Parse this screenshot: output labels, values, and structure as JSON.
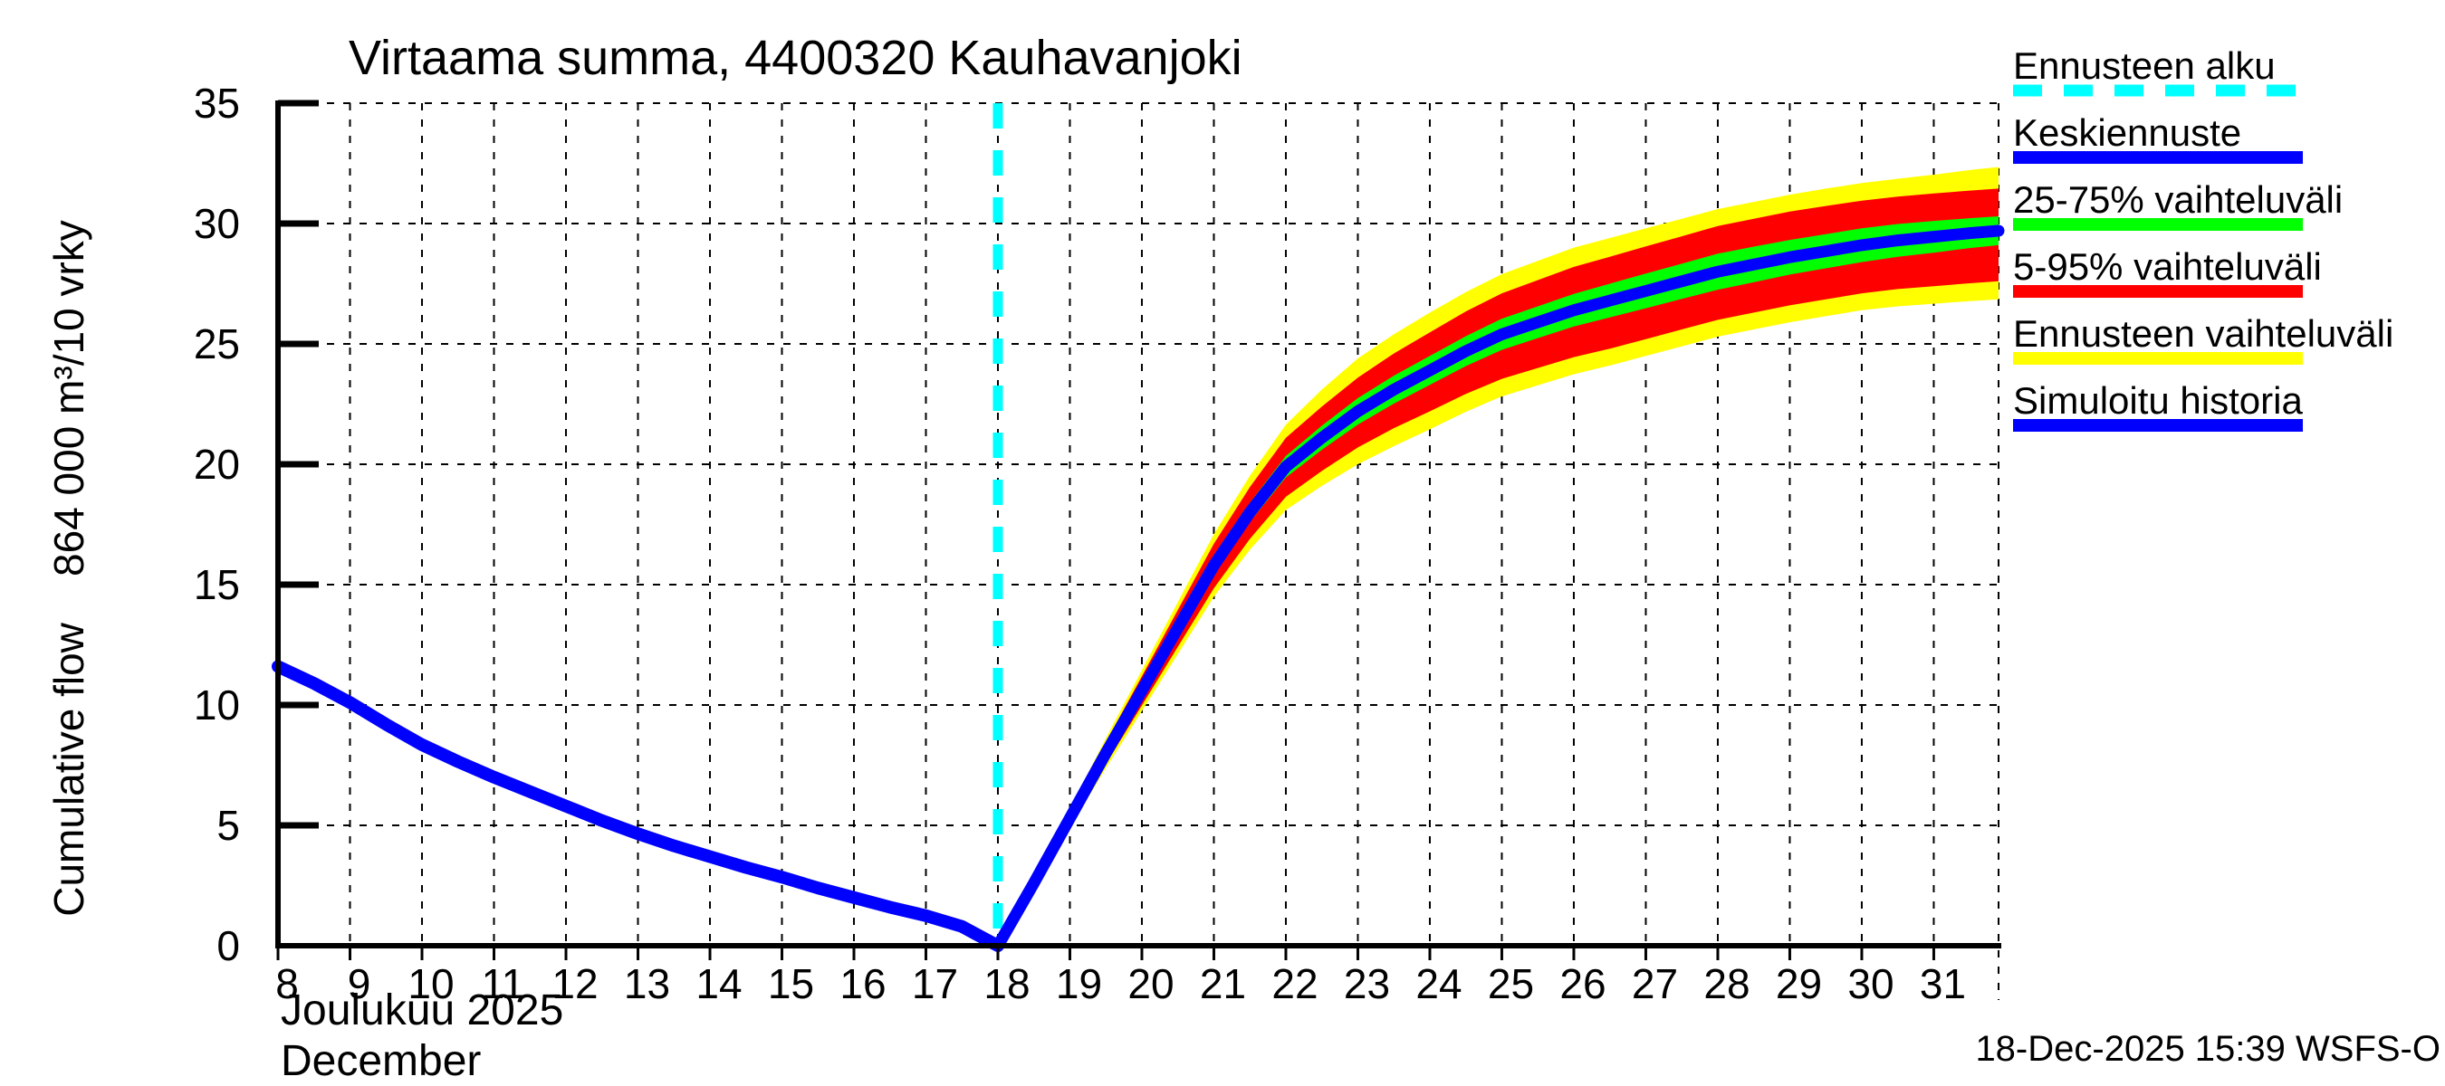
{
  "title": "Virtaama summa, 4400320 Kauhavanjoki",
  "y_axis": {
    "label": "Cumulative flow    864 000 m³/10 vrky",
    "ticks": [
      0,
      5,
      10,
      15,
      20,
      25,
      30,
      35
    ]
  },
  "x_axis": {
    "ticks": [
      8,
      9,
      10,
      11,
      12,
      13,
      14,
      15,
      16,
      17,
      18,
      19,
      20,
      21,
      22,
      23,
      24,
      25,
      26,
      27,
      28,
      29,
      30,
      31
    ],
    "month_fi": "Joulukuu 2025",
    "month_en": "December"
  },
  "footer": {
    "timestamp": "18-Dec-2025 15:39 WSFS-O"
  },
  "legend": {
    "items": [
      {
        "label": "Ennusteen alku",
        "color": "#00ffff",
        "style": "dashed"
      },
      {
        "label": "Keskiennuste",
        "color": "#0000ff",
        "style": "solid"
      },
      {
        "label": "25-75% vaihteluväli",
        "color": "#00ff00",
        "style": "solid"
      },
      {
        "label": "5-95% vaihteluväli",
        "color": "#ff0000",
        "style": "solid"
      },
      {
        "label": "Ennusteen vaihteluväli",
        "color": "#ffff00",
        "style": "solid"
      },
      {
        "label": "Simuloitu historia",
        "color": "#0000ff",
        "style": "solid"
      }
    ]
  },
  "colors": {
    "history": "#0000ff",
    "median": "#0000ff",
    "band_25_75": "#00ff00",
    "band_5_95": "#ff0000",
    "band_full": "#ffff00",
    "forecast_start": "#00ffff",
    "grid": "#000000",
    "axis": "#000000"
  },
  "chart_data": {
    "type": "line",
    "title": "Virtaama summa, 4400320 Kauhavanjoki",
    "xlabel": "Joulukuu 2025 / December (day of month)",
    "ylabel": "Cumulative flow 864 000 m³/10 vrky",
    "x_range": [
      8,
      31.9
    ],
    "y_range": [
      0,
      35
    ],
    "x_ticks": [
      8,
      9,
      10,
      11,
      12,
      13,
      14,
      15,
      16,
      17,
      18,
      19,
      20,
      21,
      22,
      23,
      24,
      25,
      26,
      27,
      28,
      29,
      30,
      31
    ],
    "y_ticks": [
      0,
      5,
      10,
      15,
      20,
      25,
      30,
      35
    ],
    "grid": "dashed",
    "legend_position": "right",
    "forecast_start_day": 18,
    "history": {
      "name": "Simuloitu historia",
      "x": [
        8,
        8.5,
        9,
        9.5,
        10,
        10.5,
        11,
        11.5,
        12,
        12.5,
        13,
        13.5,
        14,
        14.5,
        15,
        15.5,
        16,
        16.5,
        17,
        17.5,
        17.75,
        18
      ],
      "y": [
        11.6,
        10.9,
        10.1,
        9.2,
        8.35,
        7.65,
        7.0,
        6.4,
        5.8,
        5.2,
        4.65,
        4.15,
        3.7,
        3.25,
        2.85,
        2.4,
        2.0,
        1.6,
        1.25,
        0.8,
        0.4,
        0
      ]
    },
    "forecast_median": {
      "name": "Keskiennuste",
      "x": [
        18,
        18.5,
        19,
        19.5,
        20,
        20.5,
        21,
        21.5,
        22,
        22.5,
        23,
        23.5,
        24,
        24.5,
        25,
        25.5,
        26,
        26.5,
        27,
        27.5,
        28,
        28.5,
        29,
        29.5,
        30,
        30.5,
        31,
        31.5,
        31.9
      ],
      "y": [
        0,
        2.6,
        5.3,
        8.0,
        10.6,
        13.2,
        15.8,
        18.0,
        19.9,
        21.1,
        22.2,
        23.1,
        23.9,
        24.7,
        25.4,
        25.9,
        26.4,
        26.8,
        27.2,
        27.6,
        28.0,
        28.3,
        28.6,
        28.85,
        29.1,
        29.3,
        29.45,
        29.6,
        29.7
      ]
    },
    "bands": [
      {
        "name": "Ennusteen vaihteluväli",
        "color_key": "band_full",
        "upper_offset": [
          0,
          0.2,
          0.4,
          0.62,
          0.85,
          1.08,
          1.3,
          1.52,
          1.75,
          2.0,
          2.2,
          2.3,
          2.4,
          2.45,
          2.5,
          2.55,
          2.6,
          2.6,
          2.6,
          2.6,
          2.6,
          2.6,
          2.6,
          2.6,
          2.58,
          2.56,
          2.58,
          2.62,
          2.65
        ],
        "lower_offset": [
          0,
          0.2,
          0.4,
          0.62,
          0.85,
          1.08,
          1.3,
          1.55,
          1.8,
          2.0,
          2.2,
          2.35,
          2.45,
          2.52,
          2.58,
          2.62,
          2.66,
          2.7,
          2.7,
          2.7,
          2.7,
          2.7,
          2.7,
          2.7,
          2.7,
          2.74,
          2.78,
          2.82,
          2.85
        ]
      },
      {
        "name": "5-95% vaihteluväli",
        "color_key": "band_5_95",
        "upper_offset": [
          0,
          0.15,
          0.3,
          0.45,
          0.6,
          0.75,
          0.9,
          1.05,
          1.2,
          1.3,
          1.4,
          1.5,
          1.58,
          1.65,
          1.7,
          1.75,
          1.8,
          1.82,
          1.85,
          1.87,
          1.9,
          1.9,
          1.9,
          1.88,
          1.85,
          1.82,
          1.8,
          1.77,
          1.75
        ],
        "lower_offset": [
          0,
          0.15,
          0.3,
          0.45,
          0.62,
          0.78,
          0.95,
          1.1,
          1.25,
          1.38,
          1.5,
          1.6,
          1.7,
          1.78,
          1.85,
          1.9,
          1.95,
          2.0,
          2.0,
          2.0,
          2.0,
          2.0,
          2.0,
          2.0,
          2.0,
          2.02,
          2.05,
          2.08,
          2.1
        ]
      },
      {
        "name": "25-75% vaihteluväli",
        "color_key": "band_25_75",
        "upper_offset": [
          0,
          0.08,
          0.15,
          0.2,
          0.25,
          0.3,
          0.35,
          0.4,
          0.45,
          0.5,
          0.55,
          0.58,
          0.6,
          0.62,
          0.65,
          0.66,
          0.68,
          0.7,
          0.72,
          0.73,
          0.75,
          0.74,
          0.72,
          0.71,
          0.7,
          0.68,
          0.66,
          0.62,
          0.6
        ],
        "lower_offset": [
          0,
          0.08,
          0.15,
          0.2,
          0.25,
          0.3,
          0.35,
          0.4,
          0.45,
          0.5,
          0.55,
          0.58,
          0.6,
          0.62,
          0.65,
          0.66,
          0.68,
          0.7,
          0.72,
          0.73,
          0.75,
          0.74,
          0.72,
          0.71,
          0.7,
          0.68,
          0.66,
          0.62,
          0.6
        ]
      }
    ]
  }
}
